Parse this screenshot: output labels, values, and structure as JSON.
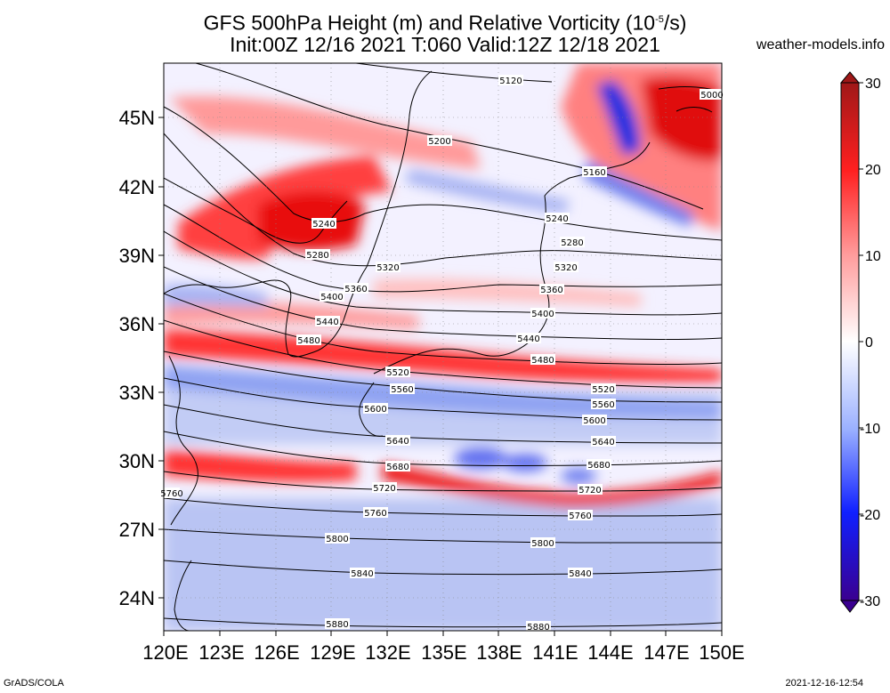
{
  "title": {
    "line1_main": "GFS 500hPa Height (m) and Relative Vorticity (10",
    "line1_exp": "-5",
    "line1_tail": "/s)",
    "line2": "Init:00Z 12/16 2021 T:060 Valid:12Z 12/18 2021"
  },
  "site": "weather-models.info",
  "footer": {
    "left": "GrADS/COLA",
    "right": "2021-12-16-12:54"
  },
  "map": {
    "lon_ticks": [
      "120E",
      "123E",
      "126E",
      "129E",
      "132E",
      "135E",
      "138E",
      "141E",
      "144E",
      "147E",
      "150E"
    ],
    "lat_ticks": [
      "45N",
      "42N",
      "39N",
      "36N",
      "33N",
      "30N",
      "27N",
      "24N"
    ],
    "lon_range": [
      120,
      150
    ],
    "lat_range": [
      22.5,
      47.5
    ]
  },
  "colorbar": {
    "ticks": [
      "30",
      "20",
      "10",
      "0",
      "-10",
      "-20",
      "-30"
    ],
    "colors": {
      "max": "#a01818",
      "high": "#ff2020",
      "mid_high": "#ff9a9a",
      "zero": "#ffffff",
      "mid_low": "#9ab0ff",
      "low": "#1020ff",
      "min": "#3a0090"
    }
  },
  "contours": [
    {
      "label": "5120"
    },
    {
      "label": "5000"
    },
    {
      "label": "5200"
    },
    {
      "label": "5160"
    },
    {
      "label": "5240"
    },
    {
      "label": "5240"
    },
    {
      "label": "5280"
    },
    {
      "label": "5280"
    },
    {
      "label": "5320"
    },
    {
      "label": "5320"
    },
    {
      "label": "5360"
    },
    {
      "label": "5360"
    },
    {
      "label": "5400"
    },
    {
      "label": "5400"
    },
    {
      "label": "5440"
    },
    {
      "label": "5440"
    },
    {
      "label": "5480"
    },
    {
      "label": "5480"
    },
    {
      "label": "5520"
    },
    {
      "label": "5520"
    },
    {
      "label": "5560"
    },
    {
      "label": "5560"
    },
    {
      "label": "5600"
    },
    {
      "label": "5600"
    },
    {
      "label": "5640"
    },
    {
      "label": "5640"
    },
    {
      "label": "5680"
    },
    {
      "label": "5680"
    },
    {
      "label": "5720"
    },
    {
      "label": "5720"
    },
    {
      "label": "5760"
    },
    {
      "label": "5760"
    },
    {
      "label": "5760"
    },
    {
      "label": "5800"
    },
    {
      "label": "5800"
    },
    {
      "label": "5840"
    },
    {
      "label": "5840"
    },
    {
      "label": "5880"
    },
    {
      "label": "5880"
    }
  ]
}
